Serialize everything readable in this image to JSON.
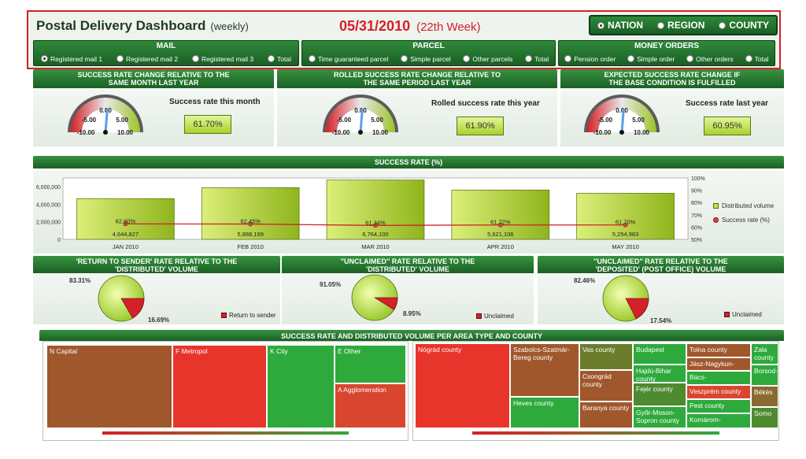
{
  "header": {
    "title": "Postal Delivery Dashboard",
    "title_sub": "(weekly)",
    "date": "05/31/2010",
    "week": "(22th Week)",
    "scope_options": [
      {
        "label": "NATION",
        "selected": true
      },
      {
        "label": "REGION",
        "selected": false
      },
      {
        "label": "COUNTY",
        "selected": false
      }
    ]
  },
  "filters": {
    "mail": {
      "title": "MAIL",
      "options": [
        {
          "label": "Registered mail 1",
          "selected": true
        },
        {
          "label": "Registered mail 2",
          "selected": false
        },
        {
          "label": "Registered mail 3",
          "selected": false
        },
        {
          "label": "Total",
          "selected": false
        }
      ]
    },
    "parcel": {
      "title": "PARCEL",
      "options": [
        {
          "label": "Time guaranteed parcel",
          "selected": false
        },
        {
          "label": "Simple parcel",
          "selected": false
        },
        {
          "label": "Other parcels",
          "selected": false
        },
        {
          "label": "Total",
          "selected": false
        }
      ]
    },
    "money": {
      "title": "MONEY ORDERS",
      "options": [
        {
          "label": "Pension order",
          "selected": false
        },
        {
          "label": "Simple order",
          "selected": false
        },
        {
          "label": "Other orders",
          "selected": false
        },
        {
          "label": "Total",
          "selected": false
        }
      ]
    }
  },
  "gauges": [
    {
      "head1": "SUCCESS RATE CHANGE RELATIVE TO THE",
      "head2": "SAME MONTH LAST YEAR",
      "kpi_label": "Success rate this month",
      "kpi_value": "61.70%",
      "ticks": [
        "0.00",
        "-5.00",
        "5.00",
        "-10.00",
        "10.00"
      ],
      "needle": 0.5
    },
    {
      "head1": "ROLLED SUCCESS RATE CHANGE RELATIVE TO",
      "head2": "THE SAME PERIOD LAST YEAR",
      "kpi_label": "Rolled success rate this year",
      "kpi_value": "61.90%",
      "ticks": [
        "0.00",
        "-5.00",
        "5.00",
        "-10.00",
        "10.00"
      ],
      "needle": 0.5
    },
    {
      "head1": "EXPECTED SUCCESS RATE CHANGE IF",
      "head2": "THE BASE CONDITION IS FULFILLED",
      "kpi_label": "Success rate last year",
      "kpi_value": "60.95%",
      "ticks": [
        "0.00",
        "-5.00",
        "5.00",
        "-10.00",
        "10.00"
      ],
      "needle": 0.5
    }
  ],
  "colors": {
    "accent_green": "#2f8a3a",
    "alert_red": "#d42027",
    "bar_green": "#9cc42a"
  },
  "chart_data": {
    "type": "bar",
    "title": "SUCCESS RATE (%)",
    "categories": [
      "JAN 2010",
      "FEB 2010",
      "MAR 2010",
      "APR 2010",
      "MAY 2010"
    ],
    "series": [
      {
        "name": "Distributed volume",
        "values": [
          4644827,
          5888199,
          6764100,
          5621106,
          5254983
        ],
        "labels": [
          "4,644,827",
          "5,888,199",
          "6,764,100",
          "5,621,106",
          "5,254,983"
        ]
      },
      {
        "name": "Success rate (%)",
        "values": [
          62.6,
          62.45,
          61.34,
          61.72,
          61.7
        ],
        "labels": [
          "62.60%",
          "62.45%",
          "61.34%",
          "61.72%",
          "61.70%"
        ]
      }
    ],
    "y_left_ticks": [
      "0",
      "2,000,000",
      "4,000,000",
      "6,000,000"
    ],
    "y_left_range": [
      0,
      7000000
    ],
    "y_right_ticks": [
      "50%",
      "60%",
      "70%",
      "80%",
      "90%",
      "100%"
    ],
    "y_right_range": [
      50,
      100
    ],
    "legend_placement": "right"
  },
  "pies": [
    {
      "head1": "'RETURN TO SENDER' RATE RELATIVE TO THE",
      "head2": "'DISTRIBUTED' VOLUME",
      "main_label": "83.31%",
      "slice_label": "16.69%",
      "slice": 16.69,
      "legend": "Return to sender"
    },
    {
      "head1": "''UNCLAIMED'' RATE RELATIVE TO THE",
      "head2": "'DISTRIBUTED' VOLUME",
      "main_label": "91.05%",
      "slice_label": "8.95%",
      "slice": 8.95,
      "legend": "Unclaimed"
    },
    {
      "head1": "''UNCLAIMED'' RATE RELATIVE TO THE",
      "head2": "'DEPOSITED' (POST OFFICE)  VOLUME",
      "main_label": "82.46%",
      "slice_label": "17.54%",
      "slice": 17.54,
      "legend": "Unclaimed"
    }
  ],
  "treemap": {
    "title": "SUCCESS RATE AND DISTRIBUTED VOLUME PER AREA TYPE AND COUNTY",
    "areas": [
      {
        "label": "N Capital",
        "color": "#a0572c"
      },
      {
        "label": "F Metropol",
        "color": "#e8352b"
      },
      {
        "label": "K City",
        "color": "#2eaa3c"
      },
      {
        "label": "E Other",
        "color": "#2eaa3c"
      },
      {
        "label": "A Agglomeration",
        "color": "#d9462f"
      }
    ],
    "counties": [
      {
        "label": "Nógrád county",
        "color": "#e8352b"
      },
      {
        "label": "Szabolcs-Szatmár-Bereg county",
        "color": "#a0572c"
      },
      {
        "label": "Heves county",
        "color": "#2eaa3c"
      },
      {
        "label": "Vas county",
        "color": "#6b7d2c"
      },
      {
        "label": "Csongrád county",
        "color": "#a0572c"
      },
      {
        "label": "Baranya county",
        "color": "#a0572c"
      },
      {
        "label": "Budapest",
        "color": "#2eaa3c"
      },
      {
        "label": "Hajdú-Bihar county",
        "color": "#2eaa3c"
      },
      {
        "label": "Fejér county",
        "color": "#4e8a30"
      },
      {
        "label": "Győr-Moson-Sopron county",
        "color": "#2eaa3c"
      },
      {
        "label": "Tolna county",
        "color": "#a0572c"
      },
      {
        "label": "Jász-Nagykun-",
        "color": "#a0572c"
      },
      {
        "label": "Bács-",
        "color": "#2eaa3c"
      },
      {
        "label": "Veszprém county",
        "color": "#d9462f"
      },
      {
        "label": "Pest county",
        "color": "#2eaa3c"
      },
      {
        "label": "Komárom-",
        "color": "#2eaa3c"
      },
      {
        "label": "Zala county",
        "color": "#2eaa3c"
      },
      {
        "label": "Borsod-",
        "color": "#2eaa3c"
      },
      {
        "label": "Békés",
        "color": "#8b6a32"
      },
      {
        "label": "Somo",
        "color": "#4e8a30"
      }
    ]
  }
}
